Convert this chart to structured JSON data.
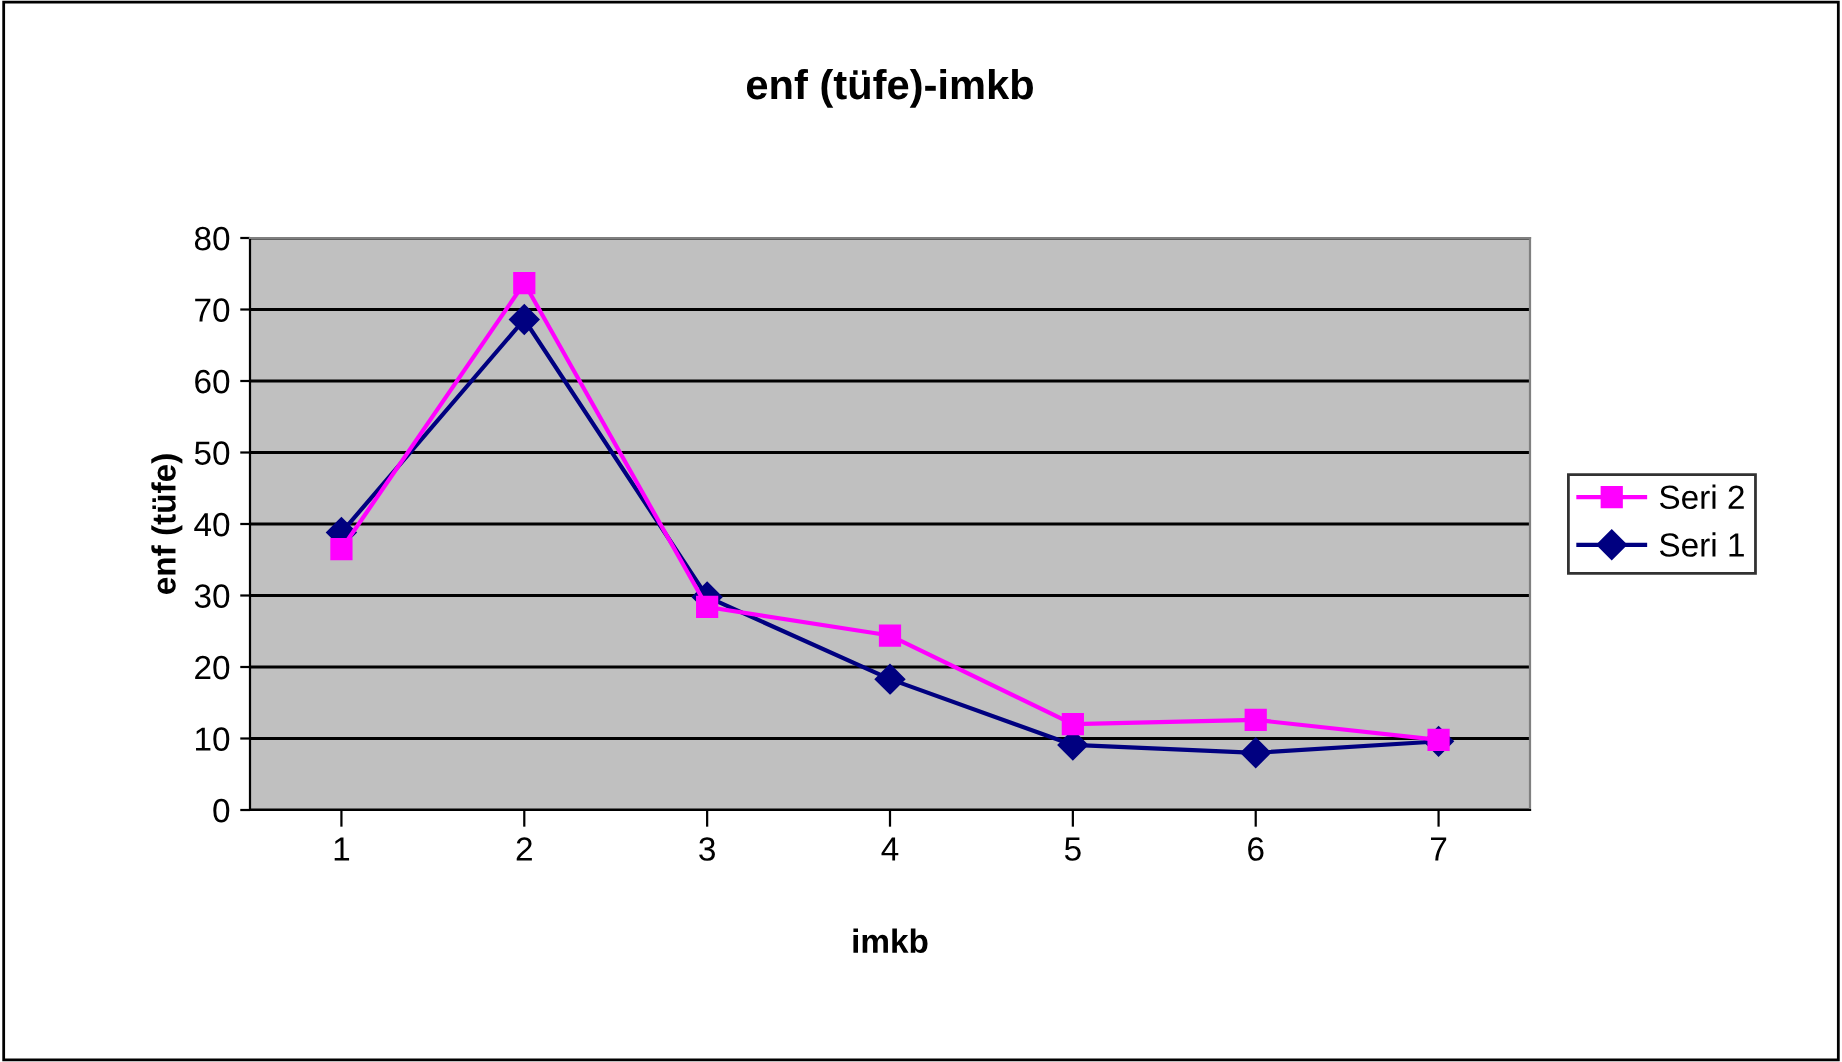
{
  "chart_data": {
    "type": "line",
    "title": "enf (tüfe)-imkb",
    "xlabel": "imkb",
    "ylabel": "enf (tüfe)",
    "categories": [
      "1",
      "2",
      "3",
      "4",
      "5",
      "6",
      "7"
    ],
    "series": [
      {
        "name": "Seri 2",
        "color": "#ff00ff",
        "marker": "square",
        "values": [
          36.5,
          73.7,
          28.4,
          24.4,
          12.0,
          12.6,
          9.8
        ]
      },
      {
        "name": "Seri 1",
        "color": "#000080",
        "marker": "diamond",
        "values": [
          38.8,
          68.6,
          29.8,
          18.3,
          9.1,
          8.0,
          9.6
        ]
      }
    ],
    "ylim": [
      0,
      80
    ],
    "yticks": [
      0,
      10,
      20,
      30,
      40,
      50,
      60,
      70,
      80
    ],
    "grid": "y",
    "legend": "right",
    "line_style": "solid"
  }
}
